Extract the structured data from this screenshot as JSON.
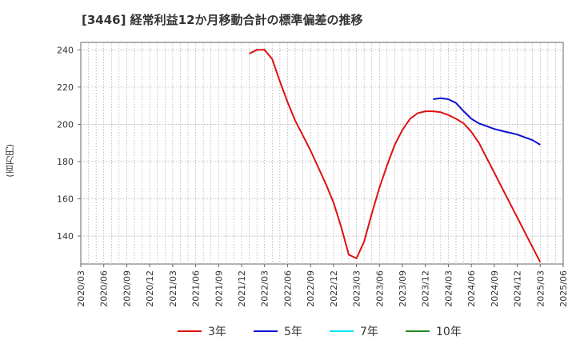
{
  "chart_data": {
    "type": "line",
    "title": "[3446]  経常利益12か月移動合計の標準偏差の推移",
    "ylabel": "(百万円)",
    "ylim": [
      125,
      244
    ],
    "yticks": [
      140,
      160,
      180,
      200,
      220,
      240
    ],
    "x_tick_labels": [
      "2020/03",
      "2020/06",
      "2020/09",
      "2020/12",
      "2021/03",
      "2021/06",
      "2021/09",
      "2021/12",
      "2022/03",
      "2022/06",
      "2022/09",
      "2022/12",
      "2023/03",
      "2023/06",
      "2023/09",
      "2023/12",
      "2024/03",
      "2024/06",
      "2024/09",
      "2024/12",
      "2025/03",
      "2025/06"
    ],
    "grid": true,
    "legend_position": "bottom",
    "series": [
      {
        "name": "3年",
        "color": "#dd1111",
        "x": [
          "2022/01",
          "2022/02",
          "2022/03",
          "2022/04",
          "2022/05",
          "2022/06",
          "2022/07",
          "2022/08",
          "2022/09",
          "2022/10",
          "2022/11",
          "2022/12",
          "2023/01",
          "2023/02",
          "2023/03",
          "2023/04",
          "2023/05",
          "2023/06",
          "2023/07",
          "2023/08",
          "2023/09",
          "2023/10",
          "2023/11",
          "2023/12",
          "2024/01",
          "2024/02",
          "2024/03",
          "2024/04",
          "2024/05",
          "2024/06",
          "2024/07",
          "2024/08",
          "2024/09",
          "2024/10",
          "2024/11",
          "2024/12",
          "2025/01",
          "2025/02",
          "2025/03"
        ],
        "values": [
          238,
          240,
          240,
          235,
          223,
          212,
          202,
          194,
          186,
          177,
          168,
          158,
          145,
          130,
          128,
          137,
          152,
          166,
          178,
          189,
          197,
          203,
          206,
          207,
          207,
          206.5,
          205,
          203,
          200.5,
          196,
          190,
          182,
          174,
          166,
          158,
          150,
          142,
          134,
          126
        ]
      },
      {
        "name": "5年",
        "color": "#1111cc",
        "x": [
          "2024/01",
          "2024/02",
          "2024/03",
          "2024/04",
          "2024/05",
          "2024/06",
          "2024/07",
          "2024/08",
          "2024/09",
          "2024/10",
          "2024/11",
          "2024/12",
          "2025/01",
          "2025/02",
          "2025/03"
        ],
        "values": [
          213.5,
          214,
          213.5,
          211.5,
          207,
          203,
          200.5,
          199,
          197.5,
          196.5,
          195.5,
          194.5,
          193,
          191.5,
          189
        ]
      },
      {
        "name": "7年",
        "color": "#00e5ee",
        "x": [],
        "values": []
      },
      {
        "name": "10年",
        "color": "#228b22",
        "x": [],
        "values": []
      }
    ]
  }
}
